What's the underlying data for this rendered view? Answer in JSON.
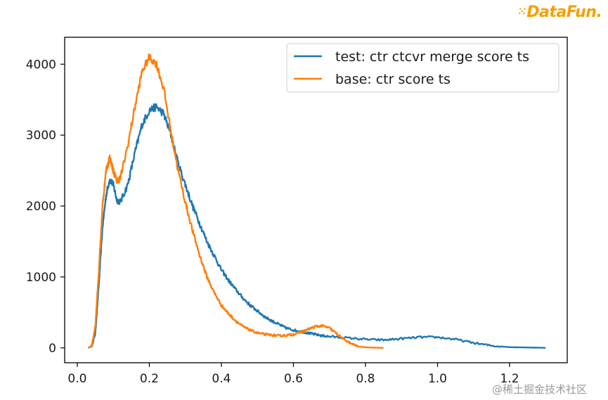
{
  "brand": {
    "logo_text": "DataFun.",
    "watermark": "@稀土掘金技术社区"
  },
  "chart_data": {
    "type": "line",
    "title": "",
    "xlabel": "",
    "ylabel": "",
    "xlim": [
      -0.035,
      1.36
    ],
    "ylim": [
      -210,
      4380
    ],
    "xticks": [
      0.0,
      0.2,
      0.4,
      0.6,
      0.8,
      1.0,
      1.2
    ],
    "xtick_labels": [
      "0.0",
      "0.2",
      "0.4",
      "0.6",
      "0.8",
      "1.0",
      "1.2"
    ],
    "yticks": [
      0,
      1000,
      2000,
      3000,
      4000
    ],
    "ytick_labels": [
      "0",
      "1000",
      "2000",
      "3000",
      "4000"
    ],
    "grid": false,
    "legend_position": "top-right",
    "series": [
      {
        "name": "test: ctr ctcvr merge score ts",
        "color": "#1f77b4",
        "x": [
          0.03,
          0.04,
          0.05,
          0.06,
          0.07,
          0.08,
          0.09,
          0.1,
          0.11,
          0.12,
          0.14,
          0.16,
          0.18,
          0.2,
          0.22,
          0.24,
          0.26,
          0.28,
          0.3,
          0.32,
          0.34,
          0.36,
          0.38,
          0.4,
          0.42,
          0.44,
          0.46,
          0.48,
          0.5,
          0.52,
          0.54,
          0.56,
          0.58,
          0.6,
          0.62,
          0.64,
          0.66,
          0.68,
          0.7,
          0.75,
          0.8,
          0.85,
          0.9,
          0.95,
          1.0,
          1.05,
          1.1,
          1.15,
          1.2,
          1.25,
          1.3
        ],
        "y": [
          0,
          20,
          200,
          900,
          1700,
          2150,
          2380,
          2300,
          2080,
          2060,
          2300,
          2750,
          3150,
          3350,
          3400,
          3300,
          3000,
          2600,
          2300,
          2000,
          1750,
          1500,
          1300,
          1100,
          950,
          820,
          700,
          600,
          520,
          440,
          380,
          330,
          280,
          250,
          230,
          210,
          190,
          170,
          160,
          140,
          120,
          110,
          130,
          150,
          150,
          120,
          70,
          30,
          10,
          5,
          0
        ]
      },
      {
        "name": "base: ctr score ts",
        "color": "#ff7f0e",
        "x": [
          0.03,
          0.04,
          0.05,
          0.06,
          0.07,
          0.08,
          0.09,
          0.1,
          0.11,
          0.12,
          0.14,
          0.16,
          0.18,
          0.2,
          0.22,
          0.24,
          0.26,
          0.28,
          0.3,
          0.32,
          0.34,
          0.36,
          0.38,
          0.4,
          0.42,
          0.44,
          0.46,
          0.48,
          0.5,
          0.52,
          0.54,
          0.56,
          0.58,
          0.6,
          0.62,
          0.64,
          0.66,
          0.68,
          0.7,
          0.72,
          0.74,
          0.76,
          0.78,
          0.8,
          0.82,
          0.85
        ],
        "y": [
          0,
          30,
          300,
          1100,
          2000,
          2500,
          2680,
          2500,
          2350,
          2400,
          2850,
          3400,
          3900,
          4100,
          4000,
          3650,
          3050,
          2500,
          2050,
          1650,
          1300,
          1000,
          780,
          600,
          480,
          380,
          300,
          250,
          210,
          190,
          180,
          170,
          175,
          190,
          220,
          260,
          300,
          310,
          280,
          200,
          120,
          60,
          20,
          8,
          3,
          0
        ]
      }
    ]
  }
}
